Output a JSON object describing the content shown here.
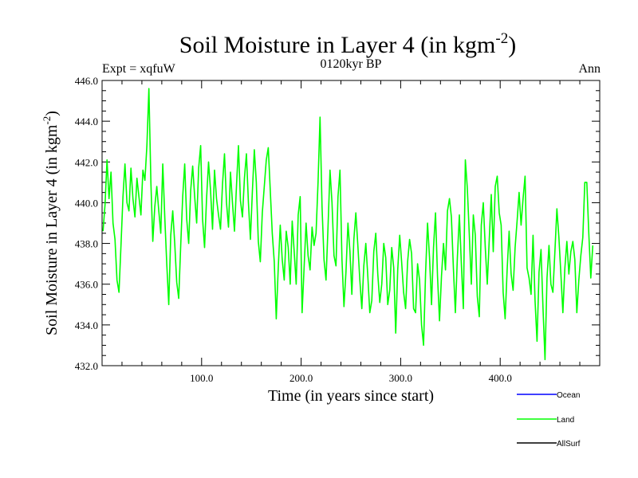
{
  "chart_data": {
    "type": "line",
    "title": "Soil Moisture in Layer 4 (in kgm",
    "title_sup": "-2",
    "title_close": ")",
    "subtitle": "0120kyr BP",
    "left_label": "Expt = xqfuW",
    "right_label": "Ann",
    "xlabel": "Time (in years since start)",
    "ylabel": "Soil Moisture in Layer 4 (in kgm",
    "ylabel_sup": "-2",
    "ylabel_close": ")",
    "xlim": [
      0,
      500
    ],
    "ylim": [
      432,
      446
    ],
    "x_ticks": [
      100,
      200,
      300,
      400
    ],
    "x_tick_labels": [
      "100.0",
      "200.0",
      "300.0",
      "400.0"
    ],
    "y_ticks": [
      432,
      434,
      436,
      438,
      440,
      442,
      444,
      446
    ],
    "y_tick_labels": [
      "432.0",
      "434.0",
      "436.0",
      "438.0",
      "440.0",
      "442.0",
      "444.0",
      "446.0"
    ],
    "legend": [
      {
        "name": "Ocean",
        "color": "#0000ff"
      },
      {
        "name": "Land",
        "color": "#00ff00"
      },
      {
        "name": "AllSurf",
        "color": "#000000"
      }
    ],
    "series": [
      {
        "name": "Land",
        "color": "#00ff00",
        "x_start": 1,
        "x_step": 2,
        "values": [
          438.6,
          439.9,
          442.1,
          440.2,
          441.5,
          439.0,
          438.2,
          436.2,
          435.6,
          437.9,
          440.3,
          441.9,
          440.0,
          439.6,
          441.7,
          440.2,
          439.3,
          441.2,
          440.3,
          439.4,
          441.6,
          441.1,
          442.8,
          445.6,
          441.0,
          438.1,
          439.8,
          440.8,
          439.6,
          438.5,
          441.9,
          439.3,
          437.0,
          435.0,
          438.4,
          439.6,
          438.0,
          436.1,
          435.3,
          437.9,
          440.3,
          441.9,
          439.2,
          438.0,
          440.6,
          441.8,
          440.3,
          439.0,
          441.7,
          442.8,
          439.2,
          437.8,
          440.2,
          442.0,
          440.6,
          438.7,
          441.6,
          440.2,
          439.4,
          438.7,
          440.9,
          442.4,
          440.0,
          438.8,
          441.5,
          440.0,
          438.6,
          440.8,
          442.8,
          440.1,
          439.3,
          441.2,
          442.4,
          440.0,
          438.2,
          440.5,
          442.6,
          441.0,
          438.1,
          437.1,
          439.5,
          440.8,
          442.1,
          442.7,
          440.6,
          438.5,
          437.1,
          434.3,
          436.8,
          438.9,
          437.2,
          436.2,
          438.6,
          437.8,
          436.0,
          439.1,
          437.6,
          436.0,
          439.4,
          440.3,
          434.6,
          436.8,
          439.0,
          437.4,
          436.7,
          438.8,
          437.9,
          438.5,
          441.0,
          444.2,
          439.8,
          437.2,
          436.2,
          438.8,
          441.6,
          440.0,
          437.4,
          436.9,
          440.3,
          441.6,
          437.2,
          434.9,
          436.6,
          439.0,
          437.6,
          435.5,
          438.2,
          439.5,
          437.9,
          436.2,
          434.8,
          436.9,
          438.0,
          436.4,
          434.6,
          435.2,
          437.6,
          438.5,
          436.5,
          435.1,
          436.0,
          438.0,
          437.3,
          435.0,
          435.7,
          437.8,
          436.8,
          433.6,
          436.7,
          438.4,
          437.1,
          435.6,
          434.8,
          437.1,
          438.2,
          437.5,
          434.8,
          434.6,
          437.0,
          436.2,
          434.0,
          433.0,
          436.5,
          439.0,
          437.3,
          435.0,
          437.8,
          439.5,
          436.4,
          434.2,
          436.4,
          438.0,
          436.7,
          439.6,
          440.2,
          439.3,
          436.8,
          434.6,
          437.3,
          439.4,
          437.0,
          434.8,
          442.1,
          440.7,
          438.4,
          436.0,
          439.4,
          438.4,
          435.4,
          434.4,
          438.9,
          440.0,
          437.8,
          436.0,
          438.2,
          440.4,
          437.6,
          440.8,
          441.3,
          439.5,
          438.9,
          435.6,
          434.3,
          436.7,
          438.6,
          436.5,
          435.7,
          437.8,
          439.1,
          440.5,
          438.9,
          440.2,
          441.3,
          436.8,
          436.3,
          435.5,
          438.4,
          435.2,
          433.2,
          436.6,
          437.7,
          434.8,
          432.3,
          436.3,
          437.9,
          436.0,
          435.6,
          437.6,
          439.7,
          438.3,
          436.5,
          434.6,
          436.8,
          438.1,
          436.5,
          437.6,
          438.1,
          437.2,
          434.6,
          436.2,
          437.4,
          438.3,
          441.0,
          441.0,
          438.5,
          436.3,
          437.9
        ]
      }
    ]
  }
}
